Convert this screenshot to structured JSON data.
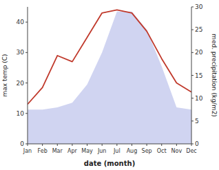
{
  "chart_data": {
    "type": "line",
    "categories": [
      "Jan",
      "Feb",
      "Mar",
      "Apr",
      "May",
      "Jun",
      "Jul",
      "Aug",
      "Sep",
      "Oct",
      "Nov",
      "Dec"
    ],
    "xlabel": "date (month)",
    "ylabel": "max temp (C)",
    "y2label": "med. precipitation (kg/m2)",
    "ylim": [
      0,
      45
    ],
    "yticks": [
      0,
      10,
      20,
      30,
      40
    ],
    "y2lim": [
      0,
      30
    ],
    "y2ticks": [
      0,
      5,
      10,
      15,
      20,
      25,
      30
    ],
    "series": [
      {
        "type": "area",
        "axis": "y2",
        "color": "#b0b8e8",
        "values": [
          7.5,
          7.5,
          8,
          9,
          13,
          20,
          29,
          29,
          25,
          17,
          8,
          7.5
        ]
      },
      {
        "type": "line",
        "color": "#c0392b",
        "values": [
          13,
          18.5,
          29,
          27,
          35,
          43,
          44,
          43,
          37,
          28,
          20,
          17
        ]
      }
    ]
  }
}
